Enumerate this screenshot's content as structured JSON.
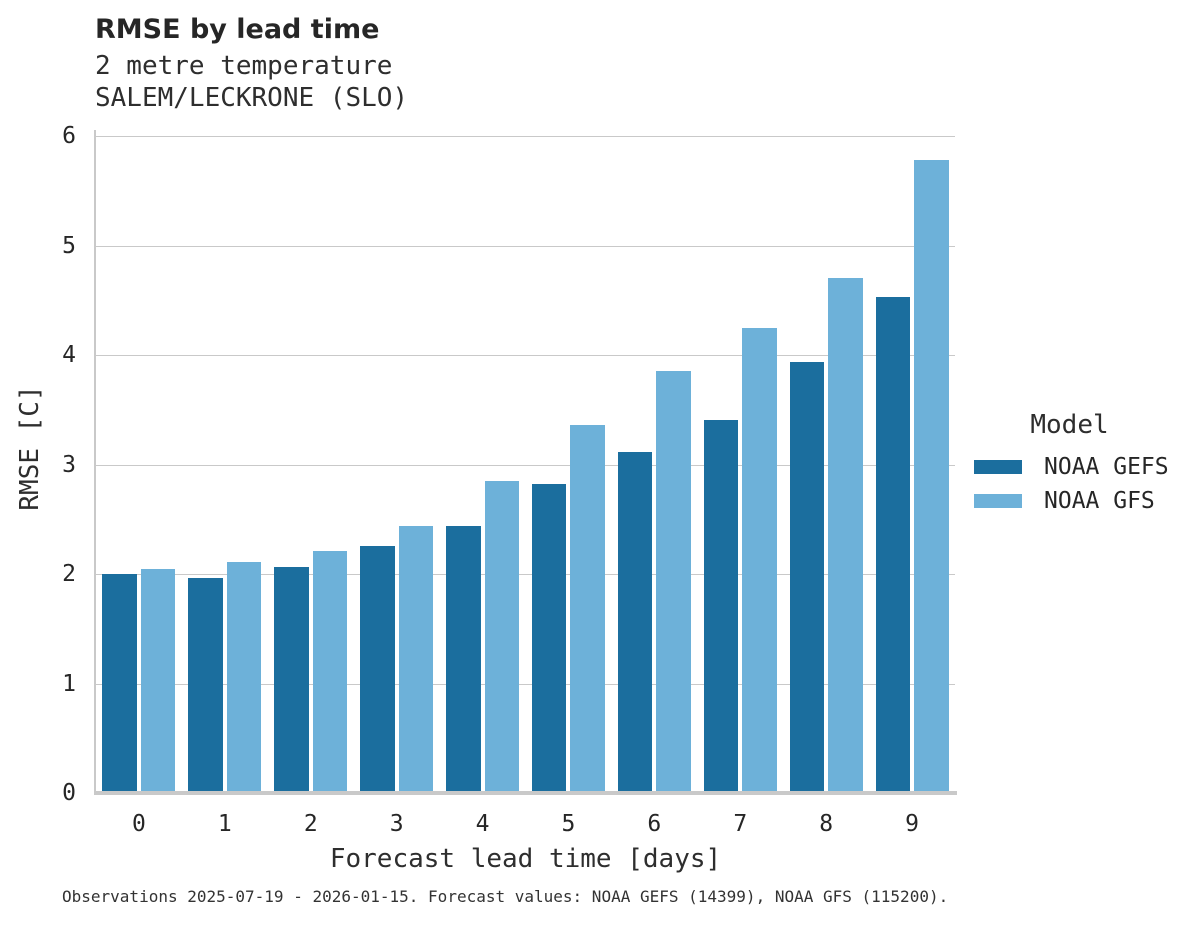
{
  "header": {
    "title": "RMSE by lead time",
    "subtitle1": "2 metre temperature",
    "subtitle2": "SALEM/LECKRONE (SLO)"
  },
  "axes": {
    "x_label": "Forecast lead time [days]",
    "y_label": "RMSE [C]",
    "x_ticks": [
      "0",
      "1",
      "2",
      "3",
      "4",
      "5",
      "6",
      "7",
      "8",
      "9"
    ],
    "y_ticks": [
      0,
      1,
      2,
      3,
      4,
      5,
      6
    ]
  },
  "legend": {
    "title": "Model",
    "items": [
      {
        "label": "NOAA GEFS",
        "color": "#1b6e9e"
      },
      {
        "label": "NOAA GFS",
        "color": "#6db1d9"
      }
    ]
  },
  "caption": "Observations 2025-07-19 - 2026-01-15. Forecast values: NOAA GEFS (14399), NOAA GFS (115200).",
  "colors": {
    "gefs_dark_blue": "#1b6e9e",
    "gfs_light_blue": "#6db1d9",
    "gridline": "#c9c9c9",
    "axis_line": "#c9c9c9",
    "text": "#262626"
  },
  "chart_data": {
    "type": "bar",
    "categories": [
      "0",
      "1",
      "2",
      "3",
      "4",
      "5",
      "6",
      "7",
      "8",
      "9"
    ],
    "series": [
      {
        "name": "NOAA GEFS",
        "color": "#1b6e9e",
        "values": [
          2.0,
          1.96,
          2.06,
          2.26,
          2.44,
          2.82,
          3.11,
          3.41,
          3.94,
          4.53
        ]
      },
      {
        "name": "NOAA GFS",
        "color": "#6db1d9",
        "values": [
          2.05,
          2.11,
          2.21,
          2.44,
          2.85,
          3.36,
          3.85,
          4.25,
          4.7,
          5.78
        ]
      }
    ],
    "title": "RMSE by lead time",
    "subtitle": [
      "2 metre temperature",
      "SALEM/LECKRONE (SLO)"
    ],
    "xlabel": "Forecast lead time [days]",
    "ylabel": "RMSE [C]",
    "ylim": [
      0,
      6
    ],
    "yticks": [
      0,
      1,
      2,
      3,
      4,
      5,
      6
    ],
    "grid": true,
    "legend_position": "right-center"
  }
}
